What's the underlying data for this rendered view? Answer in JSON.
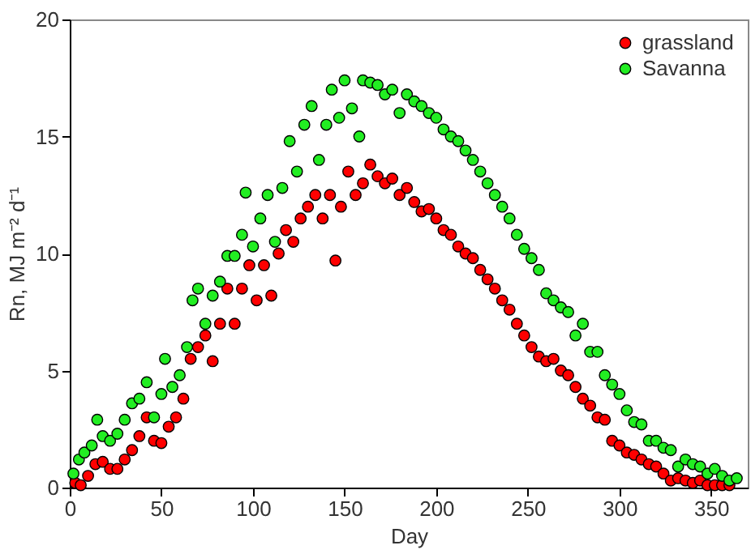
{
  "chart_data": {
    "type": "scatter",
    "xlabel": "Day",
    "ylabel": "Rn, MJ m⁻² d⁻¹",
    "xlim": [
      0,
      370
    ],
    "ylim": [
      0,
      20
    ],
    "xticks": [
      0,
      50,
      100,
      150,
      200,
      250,
      300,
      350
    ],
    "yticks": [
      0,
      5,
      10,
      15,
      20
    ],
    "legend": "top right",
    "marker": "circle",
    "grid": false,
    "series": [
      {
        "name": "grassland",
        "color": "#ff0000",
        "x": [
          3,
          6,
          10,
          14,
          18,
          22,
          26,
          30,
          34,
          38,
          42,
          46,
          50,
          54,
          58,
          62,
          66,
          70,
          74,
          78,
          82,
          86,
          90,
          94,
          98,
          102,
          106,
          110,
          114,
          118,
          122,
          126,
          130,
          134,
          138,
          142,
          145,
          148,
          152,
          156,
          160,
          164,
          168,
          172,
          176,
          180,
          184,
          188,
          192,
          196,
          200,
          204,
          208,
          212,
          216,
          220,
          224,
          228,
          232,
          236,
          240,
          244,
          248,
          252,
          256,
          260,
          264,
          268,
          272,
          276,
          280,
          284,
          288,
          292,
          296,
          300,
          304,
          308,
          312,
          316,
          320,
          324,
          328,
          332,
          336,
          340,
          344,
          348,
          352,
          356,
          360
        ],
        "values": [
          0.2,
          0.1,
          0.5,
          1.0,
          1.1,
          0.8,
          0.8,
          1.2,
          1.6,
          2.2,
          3.0,
          2.0,
          1.9,
          2.6,
          3.0,
          3.8,
          5.5,
          6.0,
          6.5,
          5.4,
          7.0,
          8.5,
          7.0,
          8.5,
          9.5,
          8.0,
          9.5,
          8.2,
          10.0,
          11.0,
          10.5,
          11.5,
          12.0,
          12.5,
          11.5,
          12.5,
          9.7,
          12.0,
          13.5,
          12.5,
          13.0,
          13.8,
          13.3,
          13.0,
          13.2,
          12.5,
          12.8,
          12.2,
          11.8,
          11.9,
          11.5,
          11.0,
          10.8,
          10.3,
          10.0,
          9.8,
          9.3,
          8.9,
          8.5,
          8.0,
          7.6,
          7.0,
          6.5,
          6.0,
          5.6,
          5.4,
          5.5,
          5.0,
          4.8,
          4.3,
          3.8,
          3.5,
          3.0,
          2.9,
          2.0,
          1.8,
          1.5,
          1.4,
          1.2,
          1.0,
          0.9,
          0.6,
          0.3,
          0.4,
          0.3,
          0.2,
          0.3,
          0.1,
          0.1,
          0.1,
          0.1
        ]
      },
      {
        "name": "Savanna",
        "color": "#22ee22",
        "x": [
          2,
          5,
          8,
          12,
          15,
          18,
          22,
          26,
          30,
          34,
          38,
          42,
          46,
          50,
          52,
          56,
          60,
          64,
          67,
          70,
          74,
          78,
          82,
          86,
          90,
          94,
          96,
          100,
          104,
          108,
          112,
          116,
          120,
          124,
          128,
          132,
          136,
          140,
          143,
          147,
          150,
          154,
          158,
          160,
          164,
          168,
          172,
          176,
          180,
          184,
          188,
          192,
          196,
          200,
          204,
          208,
          212,
          216,
          220,
          224,
          228,
          232,
          236,
          240,
          244,
          248,
          252,
          256,
          260,
          264,
          268,
          272,
          276,
          280,
          284,
          288,
          292,
          296,
          300,
          304,
          308,
          312,
          316,
          320,
          324,
          328,
          332,
          336,
          340,
          344,
          348,
          352,
          356,
          360,
          364
        ],
        "values": [
          0.6,
          1.2,
          1.5,
          1.8,
          2.9,
          2.2,
          2.0,
          2.3,
          2.9,
          3.6,
          3.8,
          4.5,
          3.0,
          4.0,
          5.5,
          4.3,
          4.8,
          6.0,
          8.0,
          8.5,
          7.0,
          8.2,
          8.8,
          9.9,
          9.9,
          10.8,
          12.6,
          10.3,
          11.5,
          12.5,
          10.5,
          12.8,
          14.8,
          13.5,
          15.5,
          16.3,
          14.0,
          15.5,
          17.0,
          15.8,
          17.4,
          16.2,
          15.0,
          17.4,
          17.3,
          17.2,
          16.8,
          17.0,
          16.0,
          16.8,
          16.5,
          16.3,
          16.0,
          15.8,
          15.3,
          15.0,
          14.8,
          14.4,
          14.0,
          13.5,
          13.0,
          12.5,
          12.0,
          11.5,
          10.8,
          10.2,
          9.8,
          9.3,
          8.3,
          8.0,
          7.7,
          7.5,
          6.5,
          7.0,
          5.8,
          5.8,
          4.8,
          4.4,
          4.0,
          3.3,
          2.8,
          2.7,
          2.0,
          2.0,
          1.7,
          1.6,
          0.9,
          1.2,
          1.0,
          0.9,
          0.6,
          0.8,
          0.5,
          0.3,
          0.4
        ]
      }
    ]
  }
}
